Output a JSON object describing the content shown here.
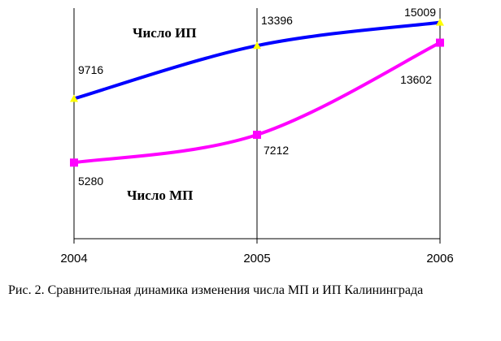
{
  "chart_data": {
    "type": "line",
    "categories": [
      "2004",
      "2005",
      "2006"
    ],
    "series": [
      {
        "name": "Число ИП",
        "values": [
          9716,
          13396,
          15009
        ],
        "color": "#0000ff",
        "marker": "triangle",
        "marker_color": "#ffff00"
      },
      {
        "name": "Число МП",
        "values": [
          5280,
          7212,
          13602
        ],
        "color": "#ff00ff",
        "marker": "square",
        "marker_color": "#ff00ff"
      }
    ],
    "value_labels": {
      "ip": [
        "9716",
        "13396",
        "15009"
      ],
      "mp": [
        "5280",
        "7212",
        "13602"
      ]
    },
    "ylim": [
      0,
      16000
    ],
    "grid": "vertical-only"
  },
  "caption": "Рис. 2. Сравнительная динамика изменения числа МП и ИП Калининграда"
}
